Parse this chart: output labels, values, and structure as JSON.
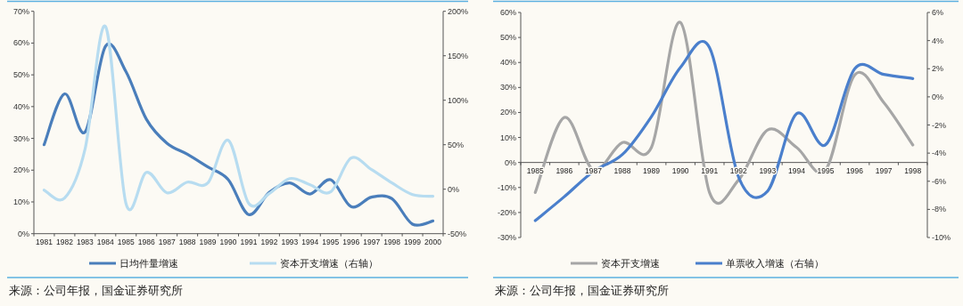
{
  "chart_data": [
    {
      "type": "line",
      "categories": [
        "1981",
        "1982",
        "1983",
        "1984",
        "1985",
        "1986",
        "1987",
        "1988",
        "1989",
        "1990",
        "1991",
        "1992",
        "1993",
        "1994",
        "1995",
        "1996",
        "1997",
        "1998",
        "1999",
        "2000"
      ],
      "series": [
        {
          "name": "日均件量增速",
          "color": "#4a7ebb",
          "values": [
            28,
            44,
            32,
            59,
            51,
            36,
            28.5,
            25,
            21,
            17,
            6,
            13,
            16,
            12.5,
            17,
            8.5,
            11.5,
            11,
            3,
            4
          ]
        },
        {
          "name": "资本开支增速（右轴）",
          "color": "#b7dcf0",
          "axis": "y2",
          "values": [
            -1,
            -10,
            45,
            183,
            -16,
            19,
            -4,
            8,
            7,
            55,
            -16,
            -5,
            12,
            5,
            -3,
            35,
            22,
            7,
            -6,
            -8
          ]
        }
      ],
      "ylim": [
        0,
        70
      ],
      "yticks": [
        {
          "value": 0,
          "label": "0%"
        },
        {
          "value": 10,
          "label": "10%"
        },
        {
          "value": 20,
          "label": "20%"
        },
        {
          "value": 30,
          "label": "30%"
        },
        {
          "value": 40,
          "label": "40%"
        },
        {
          "value": 50,
          "label": "50%"
        },
        {
          "value": 60,
          "label": "60%"
        },
        {
          "value": 70,
          "label": "70%"
        }
      ],
      "y2lim": [
        -50,
        200
      ],
      "y2ticks": [
        {
          "value": -50,
          "label": "-50%"
        },
        {
          "value": 0,
          "label": "0%"
        },
        {
          "value": 50,
          "label": "50%"
        },
        {
          "value": 100,
          "label": "100%"
        },
        {
          "value": 150,
          "label": "150%"
        },
        {
          "value": 200,
          "label": "200%"
        }
      ],
      "legend": "bottom",
      "annotations": [
        "来源：公司年报，国金证券研究所"
      ]
    },
    {
      "type": "line",
      "categories": [
        "1985",
        "1986",
        "1987",
        "1988",
        "1989",
        "1990",
        "1991",
        "1992",
        "1993",
        "1994",
        "1995",
        "1996",
        "1997",
        "1998"
      ],
      "series": [
        {
          "name": "资本开支增速",
          "color": "#a6a6a6",
          "values": [
            -12,
            18,
            -3,
            8,
            6,
            56,
            -12,
            -7,
            13,
            6,
            -3,
            35,
            24,
            7
          ]
        },
        {
          "name": "单票收入增速（右轴）",
          "color": "#4a7fcc",
          "axis": "y2",
          "values": [
            -8.8,
            -7.1,
            -5.3,
            -4.1,
            -1.4,
            2.1,
            3.5,
            -5.7,
            -6.7,
            -1.2,
            -3.4,
            2,
            1.6,
            1.3
          ]
        }
      ],
      "ylim": [
        -30,
        60
      ],
      "yticks": [
        {
          "value": -30,
          "label": "-30%"
        },
        {
          "value": -20,
          "label": "-20%"
        },
        {
          "value": -10,
          "label": "-10%"
        },
        {
          "value": 0,
          "label": "0%"
        },
        {
          "value": 10,
          "label": "10%"
        },
        {
          "value": 20,
          "label": "20%"
        },
        {
          "value": 30,
          "label": "30%"
        },
        {
          "value": 40,
          "label": "40%"
        },
        {
          "value": 50,
          "label": "50%"
        },
        {
          "value": 60,
          "label": "60%"
        }
      ],
      "y2lim": [
        -10,
        6
      ],
      "y2ticks": [
        {
          "value": -10,
          "label": "-10%"
        },
        {
          "value": -8,
          "label": "-8%"
        },
        {
          "value": -6,
          "label": "-6%"
        },
        {
          "value": -4,
          "label": "-4%"
        },
        {
          "value": -2,
          "label": "-2%"
        },
        {
          "value": 0,
          "label": "0%"
        },
        {
          "value": 2,
          "label": "2%"
        },
        {
          "value": 4,
          "label": "4%"
        },
        {
          "value": 6,
          "label": "6%"
        }
      ],
      "legend": "bottom",
      "annotations": [
        "来源：公司年报，国金证券研究所"
      ]
    }
  ]
}
